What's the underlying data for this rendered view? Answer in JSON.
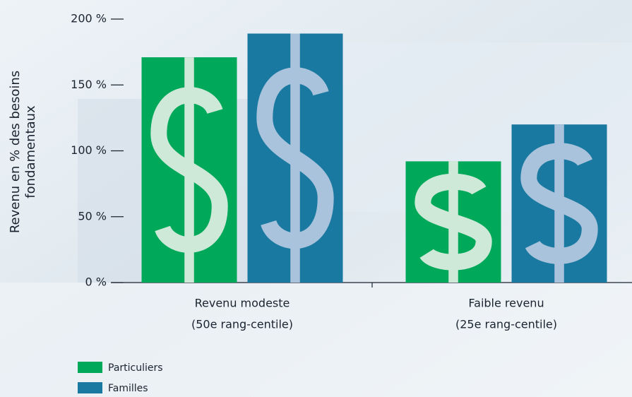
{
  "chart_data": {
    "type": "bar",
    "ylabel": [
      "Revenu en % des besoins",
      "fondamentaux"
    ],
    "categories": [
      "Revenu modeste",
      "Faible revenu"
    ],
    "category_notes": [
      "(50e rang-centile)",
      "(25e rang-centile)"
    ],
    "series": [
      {
        "name": "Particuliers",
        "color": "#00a85a",
        "values": [
          171,
          92
        ]
      },
      {
        "name": "Familles",
        "color": "#1a79a0",
        "values": [
          189,
          120
        ]
      }
    ],
    "ylim": [
      0,
      200
    ],
    "yticks": [
      {
        "value": 0,
        "label": "0 %"
      },
      {
        "value": 50,
        "label": "50 %"
      },
      {
        "value": 100,
        "label": "100 %"
      },
      {
        "value": 150,
        "label": "150 %"
      },
      {
        "value": 200,
        "label": "200 %"
      }
    ]
  }
}
